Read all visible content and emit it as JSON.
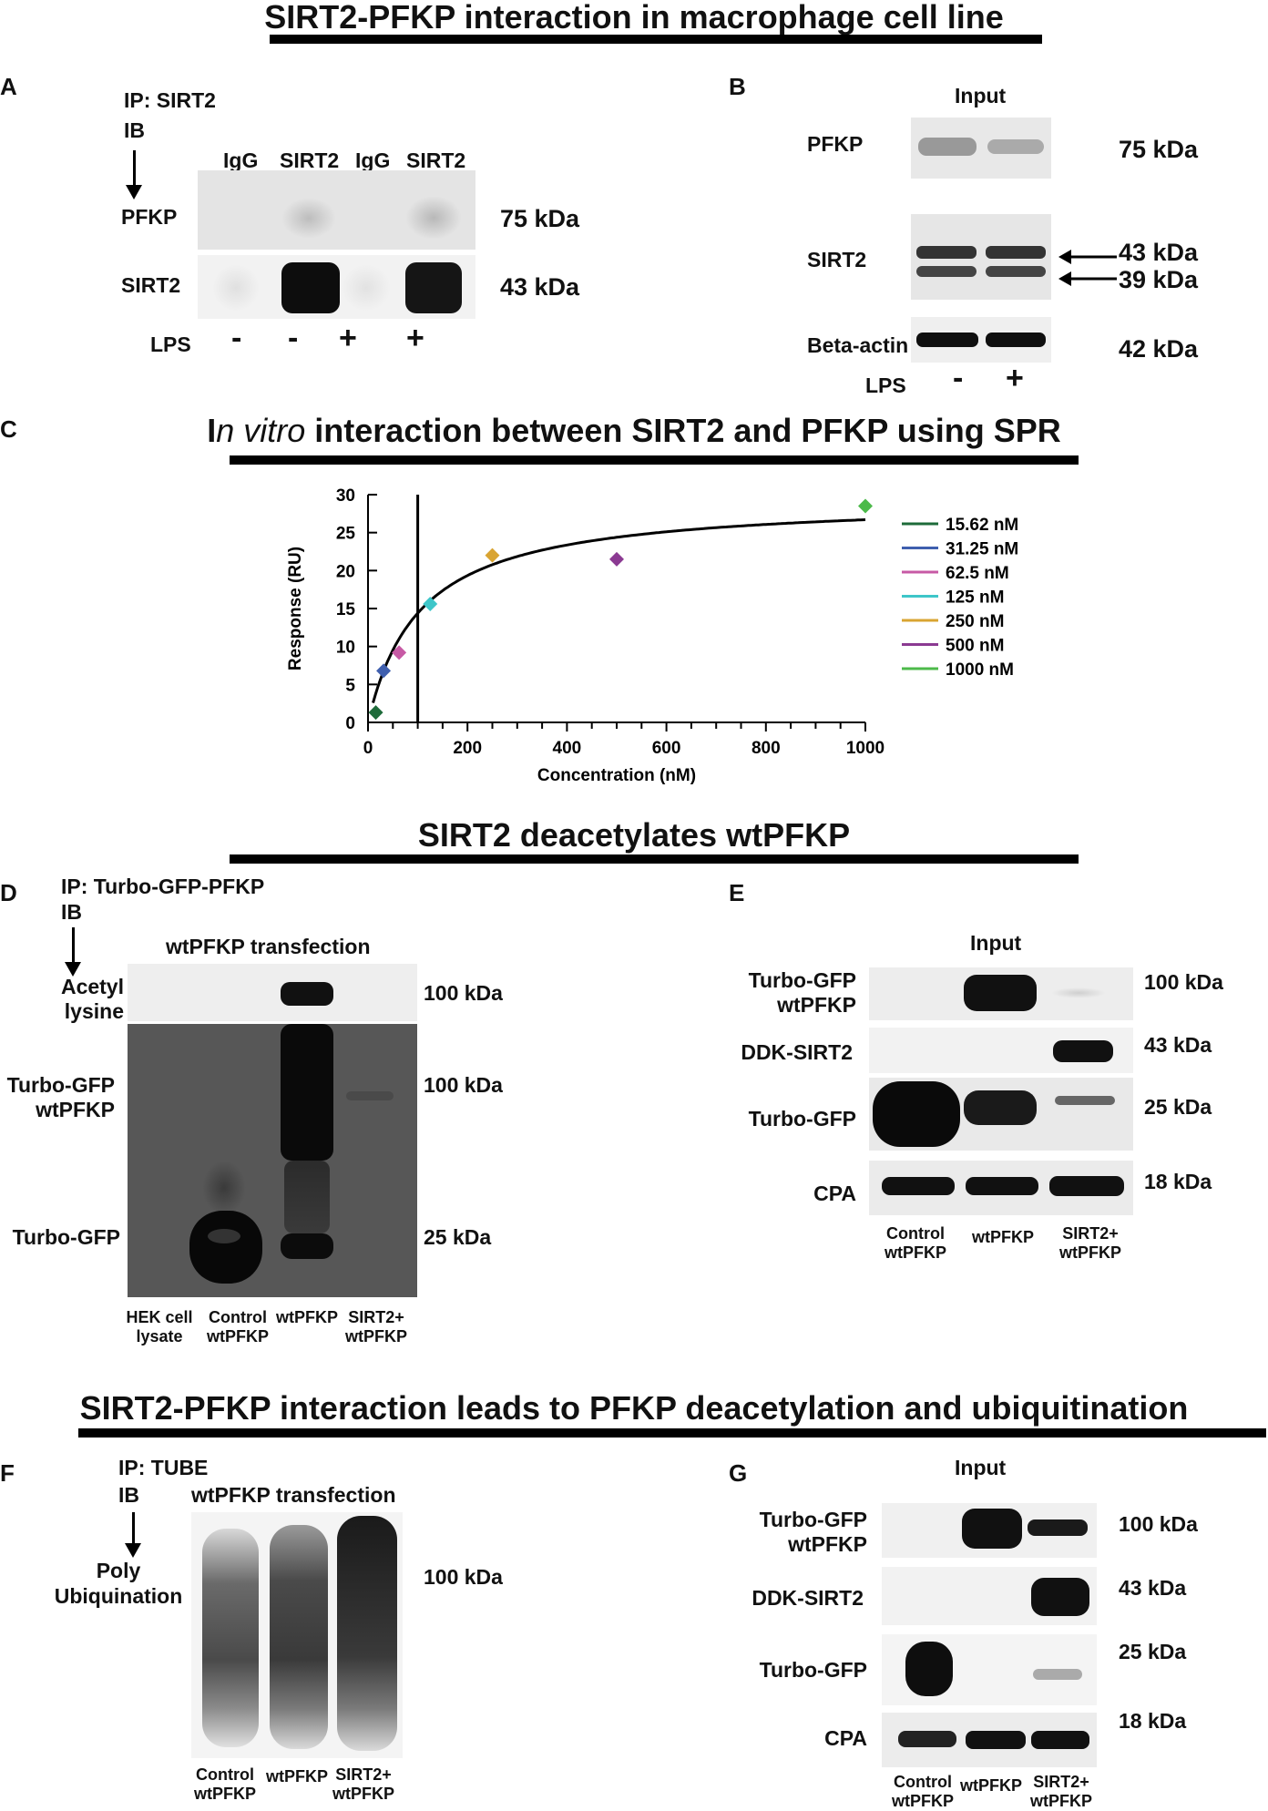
{
  "titles": {
    "top": "SIRT2-PFKP interaction in macrophage cell line",
    "spr_prefix": "I",
    "spr_italic": "n vitro",
    "spr_rest": " interaction between SIRT2 and PFKP using SPR",
    "deacetyl": "SIRT2 deacetylates wtPFKP",
    "ubiq": "SIRT2-PFKP interaction leads to PFKP deacetylation and ubiquitination"
  },
  "panelA": {
    "letter": "A",
    "ip": "IP: SIRT2",
    "ib": "IB",
    "lanes": [
      "IgG",
      "SIRT2",
      "IgG",
      "SIRT2"
    ],
    "rows": [
      "PFKP",
      "SIRT2"
    ],
    "kda": [
      "75 kDa",
      "43 kDa"
    ],
    "lps_label": "LPS",
    "lps": [
      "-",
      "-",
      "+",
      "+"
    ]
  },
  "panelB": {
    "letter": "B",
    "header": "Input",
    "rows": [
      "PFKP",
      "SIRT2",
      "Beta-actin"
    ],
    "kda": [
      "75 kDa",
      "43 kDa",
      "39 kDa",
      "42 kDa"
    ],
    "lps_label": "LPS",
    "lps": [
      "-",
      "+"
    ]
  },
  "panelC": {
    "letter": "C"
  },
  "chart_data": {
    "type": "scatter",
    "xlabel": "Concentration (nM)",
    "ylabel": "Response (RU)",
    "xlim": [
      0,
      1000
    ],
    "ylim": [
      0,
      30
    ],
    "xticks": [
      "0",
      "200",
      "400",
      "600",
      "800",
      "1000"
    ],
    "yticks": [
      "0",
      "5",
      "10",
      "15",
      "20",
      "25",
      "30"
    ],
    "vline_x": 100,
    "fit": {
      "rmax": 29.5,
      "kd": 105
    },
    "series": [
      {
        "name": "15.62 nM",
        "x": 15.62,
        "y": 1.3,
        "color": "#1e6b3a"
      },
      {
        "name": "31.25 nM",
        "x": 31.25,
        "y": 6.8,
        "color": "#3f5fae"
      },
      {
        "name": "62.5  nM",
        "x": 62.5,
        "y": 9.2,
        "color": "#c75aa5"
      },
      {
        "name": "125   nM",
        "x": 125,
        "y": 15.6,
        "color": "#3ec6c9"
      },
      {
        "name": "250   nM",
        "x": 250,
        "y": 22.0,
        "color": "#d9a432"
      },
      {
        "name": "500   nM",
        "x": 500,
        "y": 21.5,
        "color": "#8b3a92"
      },
      {
        "name": "1000  nM",
        "x": 1000,
        "y": 28.5,
        "color": "#4cba4a"
      }
    ],
    "legend_position": "right"
  },
  "panelD": {
    "letter": "D",
    "ip": "IP: Turbo-GFP-PFKP",
    "ib": "IB",
    "header": "wtPFKP transfection",
    "rows": [
      "Acetyl\nlysine",
      "Turbo-GFP\nwtPFKP",
      "Turbo-GFP"
    ],
    "kda": [
      "100 kDa",
      "100 kDa",
      "25 kDa"
    ],
    "lanes": [
      "HEK cell\nlysate",
      "Control\nwtPFKP",
      "wtPFKP",
      "SIRT2+\nwtPFKP"
    ]
  },
  "panelE": {
    "letter": "E",
    "header": "Input",
    "rows": [
      "Turbo-GFP\nwtPFKP",
      "DDK-SIRT2",
      "Turbo-GFP",
      "CPA"
    ],
    "kda": [
      "100 kDa",
      "43 kDa",
      "25 kDa",
      "18 kDa"
    ],
    "lanes": [
      "Control\nwtPFKP",
      "wtPFKP",
      "SIRT2+\nwtPFKP"
    ]
  },
  "panelF": {
    "letter": "F",
    "ip": "IP: TUBE",
    "ib": "IB",
    "header": "wtPFKP transfection",
    "row": "Poly\nUbiquination",
    "kda": "100 kDa",
    "lanes": [
      "Control\nwtPFKP",
      "wtPFKP",
      "SIRT2+\nwtPFKP"
    ]
  },
  "panelG": {
    "letter": "G",
    "header": "Input",
    "rows": [
      "Turbo-GFP\nwtPFKP",
      "DDK-SIRT2",
      "Turbo-GFP",
      "CPA"
    ],
    "kda": [
      "100 kDa",
      "43 kDa",
      "25 kDa",
      "18 kDa"
    ],
    "lanes": [
      "Control\nwtPFKP",
      "wtPFKP",
      "SIRT2+\nwtPFKP"
    ]
  }
}
